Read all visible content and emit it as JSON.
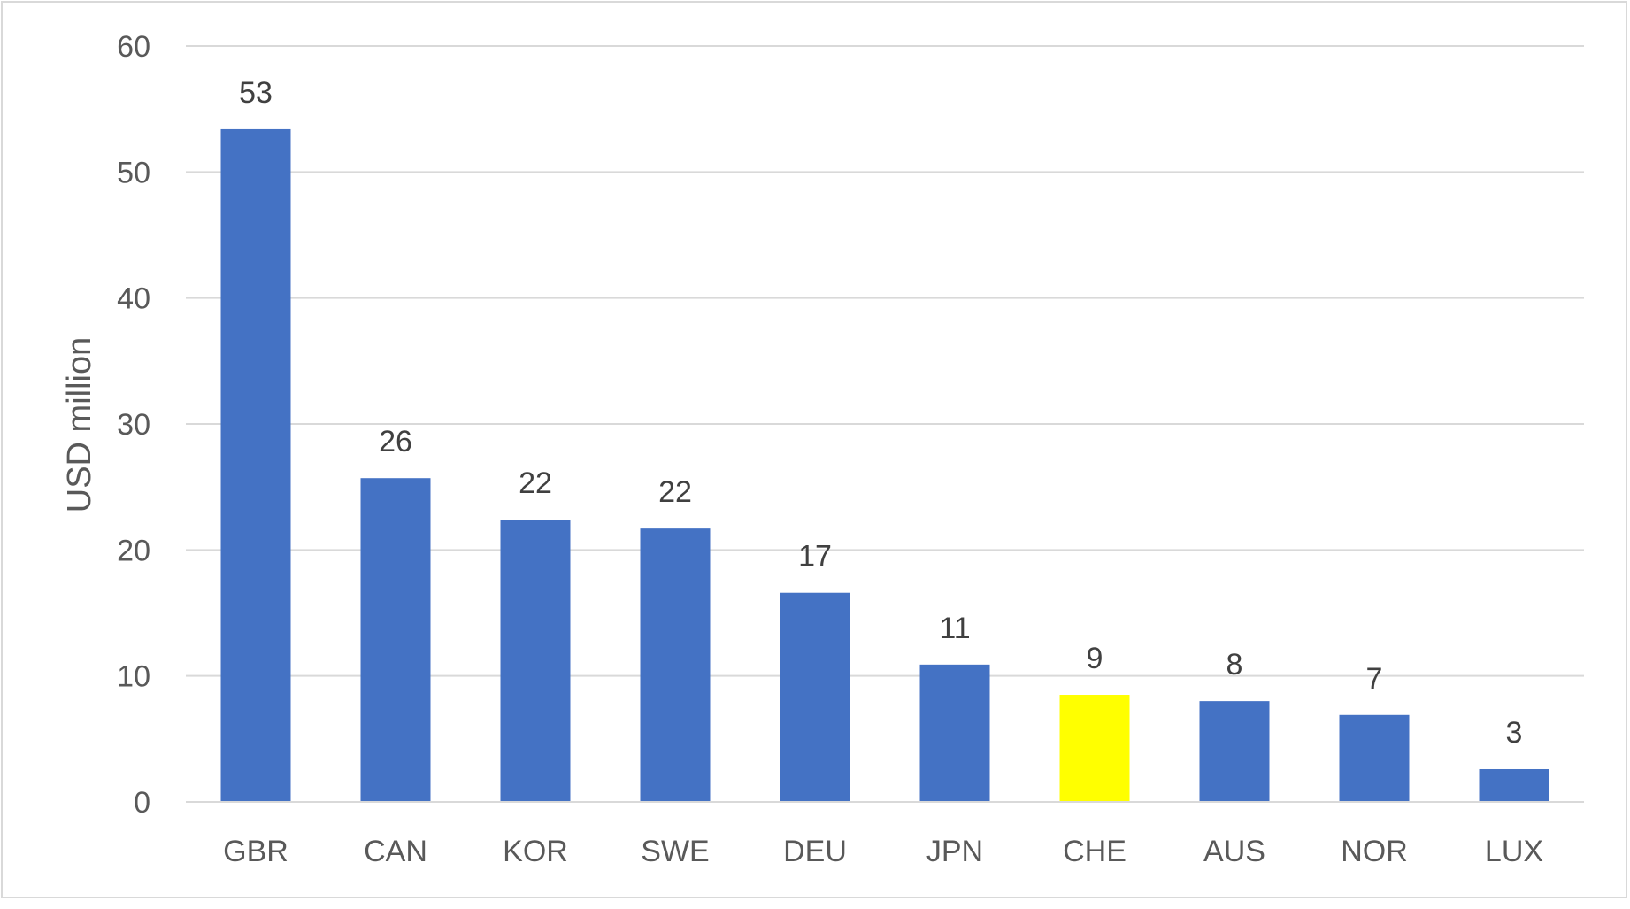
{
  "chart_data": {
    "type": "bar",
    "title": "",
    "xlabel": "",
    "ylabel": "USD million",
    "ylim": [
      0,
      60
    ],
    "yticks": [
      0,
      10,
      20,
      30,
      40,
      50,
      60
    ],
    "grid": true,
    "legend": "none",
    "categories": [
      "GBR",
      "CAN",
      "KOR",
      "SWE",
      "DEU",
      "JPN",
      "CHE",
      "AUS",
      "NOR",
      "LUX"
    ],
    "values": [
      53.4,
      25.7,
      22.4,
      21.7,
      16.6,
      10.9,
      8.5,
      8.0,
      6.9,
      2.6
    ],
    "data_labels": [
      "53",
      "26",
      "22",
      "22",
      "17",
      "11",
      "9",
      "8",
      "7",
      "3"
    ],
    "colors": {
      "default": "#4472C4",
      "highlight": "#FFFF00",
      "highlight_category": "CHE"
    }
  }
}
